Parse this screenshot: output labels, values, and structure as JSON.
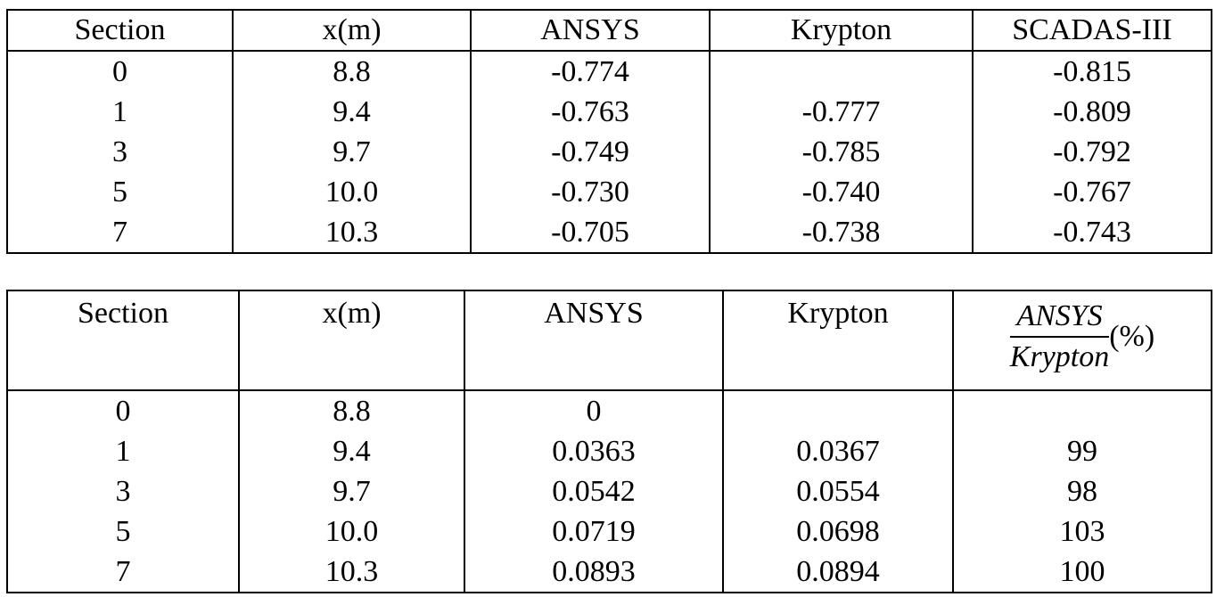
{
  "table1": {
    "header": [
      "Section",
      "x(m)",
      "ANSYS",
      "Krypton",
      "SCADAS-III"
    ],
    "rows": [
      [
        "0",
        "8.8",
        "-0.774",
        null,
        "-0.815"
      ],
      [
        "1",
        "9.4",
        "-0.763",
        "-0.777",
        "-0.809"
      ],
      [
        "3",
        "9.7",
        "-0.749",
        "-0.785",
        "-0.792"
      ],
      [
        "5",
        "10.0",
        "-0.730",
        "-0.740",
        "-0.767"
      ],
      [
        "7",
        "10.3",
        "-0.705",
        "-0.738",
        "-0.743"
      ]
    ]
  },
  "table2": {
    "header": [
      "Section",
      "x(m)",
      "ANSYS",
      "Krypton",
      {
        "numerator": "ANSYS",
        "denominator": "Krypton",
        "suffix": "(%)"
      }
    ],
    "rows": [
      [
        "0",
        "8.8",
        "0",
        null,
        null
      ],
      [
        "1",
        "9.4",
        "0.0363",
        "0.0367",
        "99"
      ],
      [
        "3",
        "9.7",
        "0.0542",
        "0.0554",
        "98"
      ],
      [
        "5",
        "10.0",
        "0.0719",
        "0.0698",
        "103"
      ],
      [
        "7",
        "10.3",
        "0.0893",
        "0.0894",
        "100"
      ]
    ]
  }
}
